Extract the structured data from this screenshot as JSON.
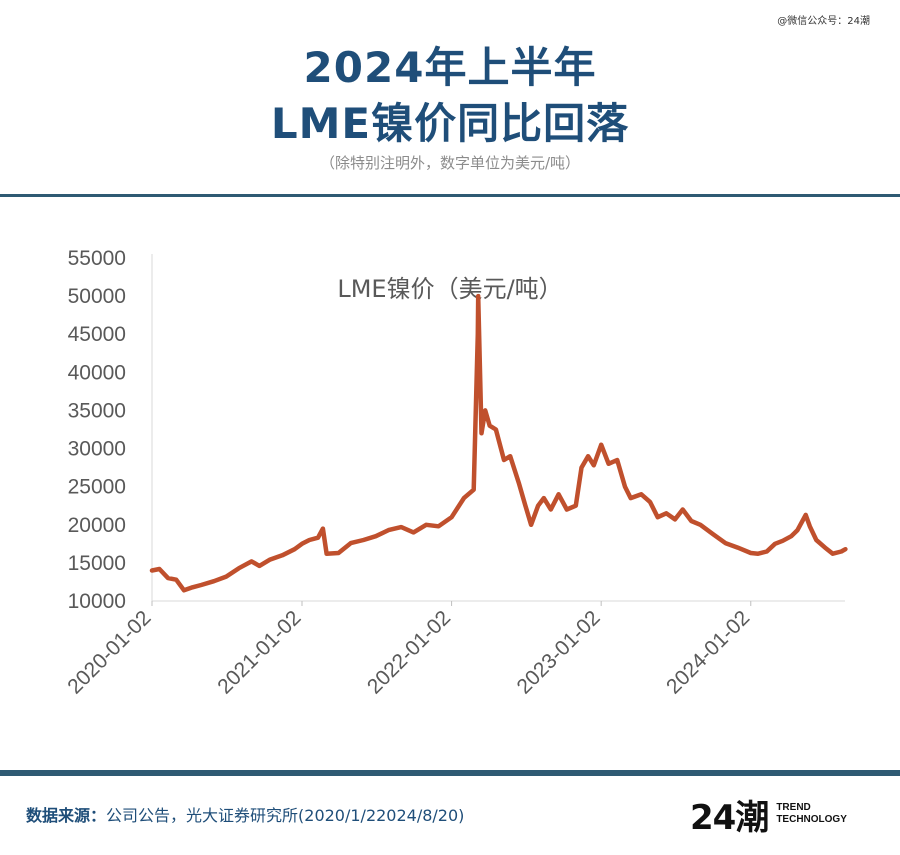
{
  "watermark": "@微信公众号：24潮",
  "header": {
    "title_line1": "2024年上半年",
    "title_line2": "LME镍价同比回落",
    "subtitle": "（除特别注明外，数字单位为美元/吨）"
  },
  "footer": {
    "source_label": "数据来源：",
    "source_text": "公司公告，光大证券研究所(2020/1/22024/8/20)",
    "logo_mark": "24潮",
    "logo_line1": "TREND",
    "logo_line2": "TECHNOLOGY"
  },
  "colors": {
    "line": "#c0502d",
    "title": "#1f4e79",
    "axis_text": "#595959"
  },
  "chart_data": {
    "type": "line",
    "title": "LME镍价（美元/吨）",
    "xlabel": "",
    "ylabel": "",
    "ylim": [
      10000,
      55000
    ],
    "yticks": [
      "10000",
      "15000",
      "20000",
      "25000",
      "30000",
      "35000",
      "40000",
      "45000",
      "50000",
      "55000"
    ],
    "xticks": [
      "2020-01-02",
      "2021-01-02",
      "2022-01-02",
      "2023-01-02",
      "2024-01-02"
    ],
    "grid": false,
    "series": [
      {
        "values": [
          [
            "2020-01-02",
            14000
          ],
          [
            "2020-01-20",
            14200
          ],
          [
            "2020-02-10",
            13000
          ],
          [
            "2020-03-01",
            12800
          ],
          [
            "2020-03-20",
            11400
          ],
          [
            "2020-04-10",
            11800
          ],
          [
            "2020-05-01",
            12100
          ],
          [
            "2020-06-01",
            12600
          ],
          [
            "2020-07-01",
            13200
          ],
          [
            "2020-08-01",
            14300
          ],
          [
            "2020-09-01",
            15200
          ],
          [
            "2020-09-20",
            14600
          ],
          [
            "2020-10-15",
            15400
          ],
          [
            "2020-11-15",
            16000
          ],
          [
            "2020-12-15",
            16800
          ],
          [
            "2021-01-02",
            17500
          ],
          [
            "2021-01-20",
            18000
          ],
          [
            "2021-02-10",
            18300
          ],
          [
            "2021-02-22",
            19500
          ],
          [
            "2021-03-03",
            16200
          ],
          [
            "2021-04-01",
            16300
          ],
          [
            "2021-05-01",
            17600
          ],
          [
            "2021-06-01",
            18000
          ],
          [
            "2021-07-01",
            18500
          ],
          [
            "2021-08-01",
            19300
          ],
          [
            "2021-09-01",
            19700
          ],
          [
            "2021-10-01",
            19000
          ],
          [
            "2021-11-01",
            20000
          ],
          [
            "2021-12-01",
            19800
          ],
          [
            "2022-01-02",
            21000
          ],
          [
            "2022-02-01",
            23500
          ],
          [
            "2022-02-25",
            24600
          ],
          [
            "2022-03-07",
            45000
          ],
          [
            "2022-03-08",
            50000
          ],
          [
            "2022-03-16",
            32000
          ],
          [
            "2022-03-25",
            35000
          ],
          [
            "2022-04-05",
            33000
          ],
          [
            "2022-04-20",
            32500
          ],
          [
            "2022-05-10",
            28500
          ],
          [
            "2022-05-25",
            29000
          ],
          [
            "2022-06-15",
            25500
          ],
          [
            "2022-07-01",
            22500
          ],
          [
            "2022-07-15",
            20000
          ],
          [
            "2022-08-01",
            22500
          ],
          [
            "2022-08-15",
            23500
          ],
          [
            "2022-09-01",
            22000
          ],
          [
            "2022-09-20",
            24000
          ],
          [
            "2022-10-10",
            22000
          ],
          [
            "2022-11-01",
            22500
          ],
          [
            "2022-11-15",
            27500
          ],
          [
            "2022-12-01",
            29000
          ],
          [
            "2022-12-15",
            27800
          ],
          [
            "2023-01-02",
            30500
          ],
          [
            "2023-01-20",
            28000
          ],
          [
            "2023-02-10",
            28500
          ],
          [
            "2023-03-01",
            25000
          ],
          [
            "2023-03-15",
            23500
          ],
          [
            "2023-04-10",
            24000
          ],
          [
            "2023-05-01",
            23000
          ],
          [
            "2023-05-20",
            21000
          ],
          [
            "2023-06-10",
            21500
          ],
          [
            "2023-07-01",
            20700
          ],
          [
            "2023-07-20",
            22000
          ],
          [
            "2023-08-10",
            20500
          ],
          [
            "2023-09-01",
            20000
          ],
          [
            "2023-10-01",
            18800
          ],
          [
            "2023-11-01",
            17600
          ],
          [
            "2023-12-01",
            17000
          ],
          [
            "2024-01-02",
            16300
          ],
          [
            "2024-01-20",
            16200
          ],
          [
            "2024-02-10",
            16500
          ],
          [
            "2024-03-01",
            17500
          ],
          [
            "2024-03-20",
            17900
          ],
          [
            "2024-04-10",
            18500
          ],
          [
            "2024-04-25",
            19300
          ],
          [
            "2024-05-15",
            21300
          ],
          [
            "2024-05-25",
            19800
          ],
          [
            "2024-06-10",
            18000
          ],
          [
            "2024-07-01",
            17000
          ],
          [
            "2024-07-20",
            16200
          ],
          [
            "2024-08-10",
            16500
          ],
          [
            "2024-08-20",
            16800
          ]
        ]
      }
    ]
  }
}
